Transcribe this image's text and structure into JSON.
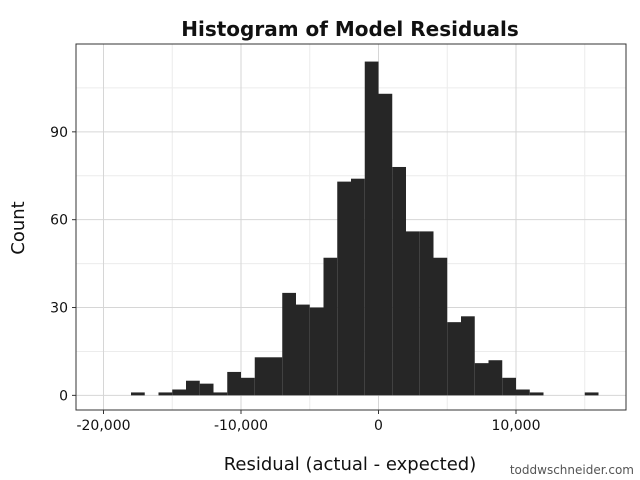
{
  "chart_data": {
    "type": "bar",
    "title": "Histogram of Model Residuals",
    "xlabel": "Residual (actual - expected)",
    "ylabel": "Count",
    "xlim": [
      -22000,
      18000
    ],
    "ylim": [
      -5,
      120
    ],
    "bin_width": 1000,
    "x_ticks": [
      {
        "value": -20000,
        "label": "-20,000"
      },
      {
        "value": -10000,
        "label": "-10,000"
      },
      {
        "value": 0,
        "label": "0"
      },
      {
        "value": 10000,
        "label": "10,000"
      }
    ],
    "y_ticks": [
      {
        "value": 0,
        "label": "0"
      },
      {
        "value": 30,
        "label": "30"
      },
      {
        "value": 60,
        "label": "60"
      },
      {
        "value": 90,
        "label": "90"
      }
    ],
    "grid": true,
    "bins": [
      {
        "x": -17500,
        "count": 1
      },
      {
        "x": -15500,
        "count": 1
      },
      {
        "x": -14500,
        "count": 2
      },
      {
        "x": -13500,
        "count": 5
      },
      {
        "x": -12500,
        "count": 4
      },
      {
        "x": -11500,
        "count": 1
      },
      {
        "x": -10500,
        "count": 8
      },
      {
        "x": -9500,
        "count": 6
      },
      {
        "x": -8500,
        "count": 13
      },
      {
        "x": -7500,
        "count": 13
      },
      {
        "x": -6500,
        "count": 35
      },
      {
        "x": -5500,
        "count": 31
      },
      {
        "x": -4500,
        "count": 30
      },
      {
        "x": -3500,
        "count": 47
      },
      {
        "x": -2500,
        "count": 73
      },
      {
        "x": -1500,
        "count": 74
      },
      {
        "x": -500,
        "count": 114
      },
      {
        "x": 500,
        "count": 103
      },
      {
        "x": 1500,
        "count": 78
      },
      {
        "x": 2500,
        "count": 56
      },
      {
        "x": 3500,
        "count": 56
      },
      {
        "x": 4500,
        "count": 47
      },
      {
        "x": 5500,
        "count": 25
      },
      {
        "x": 6500,
        "count": 27
      },
      {
        "x": 7500,
        "count": 11
      },
      {
        "x": 8500,
        "count": 12
      },
      {
        "x": 9500,
        "count": 6
      },
      {
        "x": 10500,
        "count": 2
      },
      {
        "x": 11500,
        "count": 1
      },
      {
        "x": 15500,
        "count": 1
      }
    ],
    "colors": {
      "bar": "#262626",
      "panel_border": "#333333",
      "grid_major": "#d6d6d6",
      "grid_minor": "#ececec"
    }
  },
  "watermark": "toddwschneider.com"
}
